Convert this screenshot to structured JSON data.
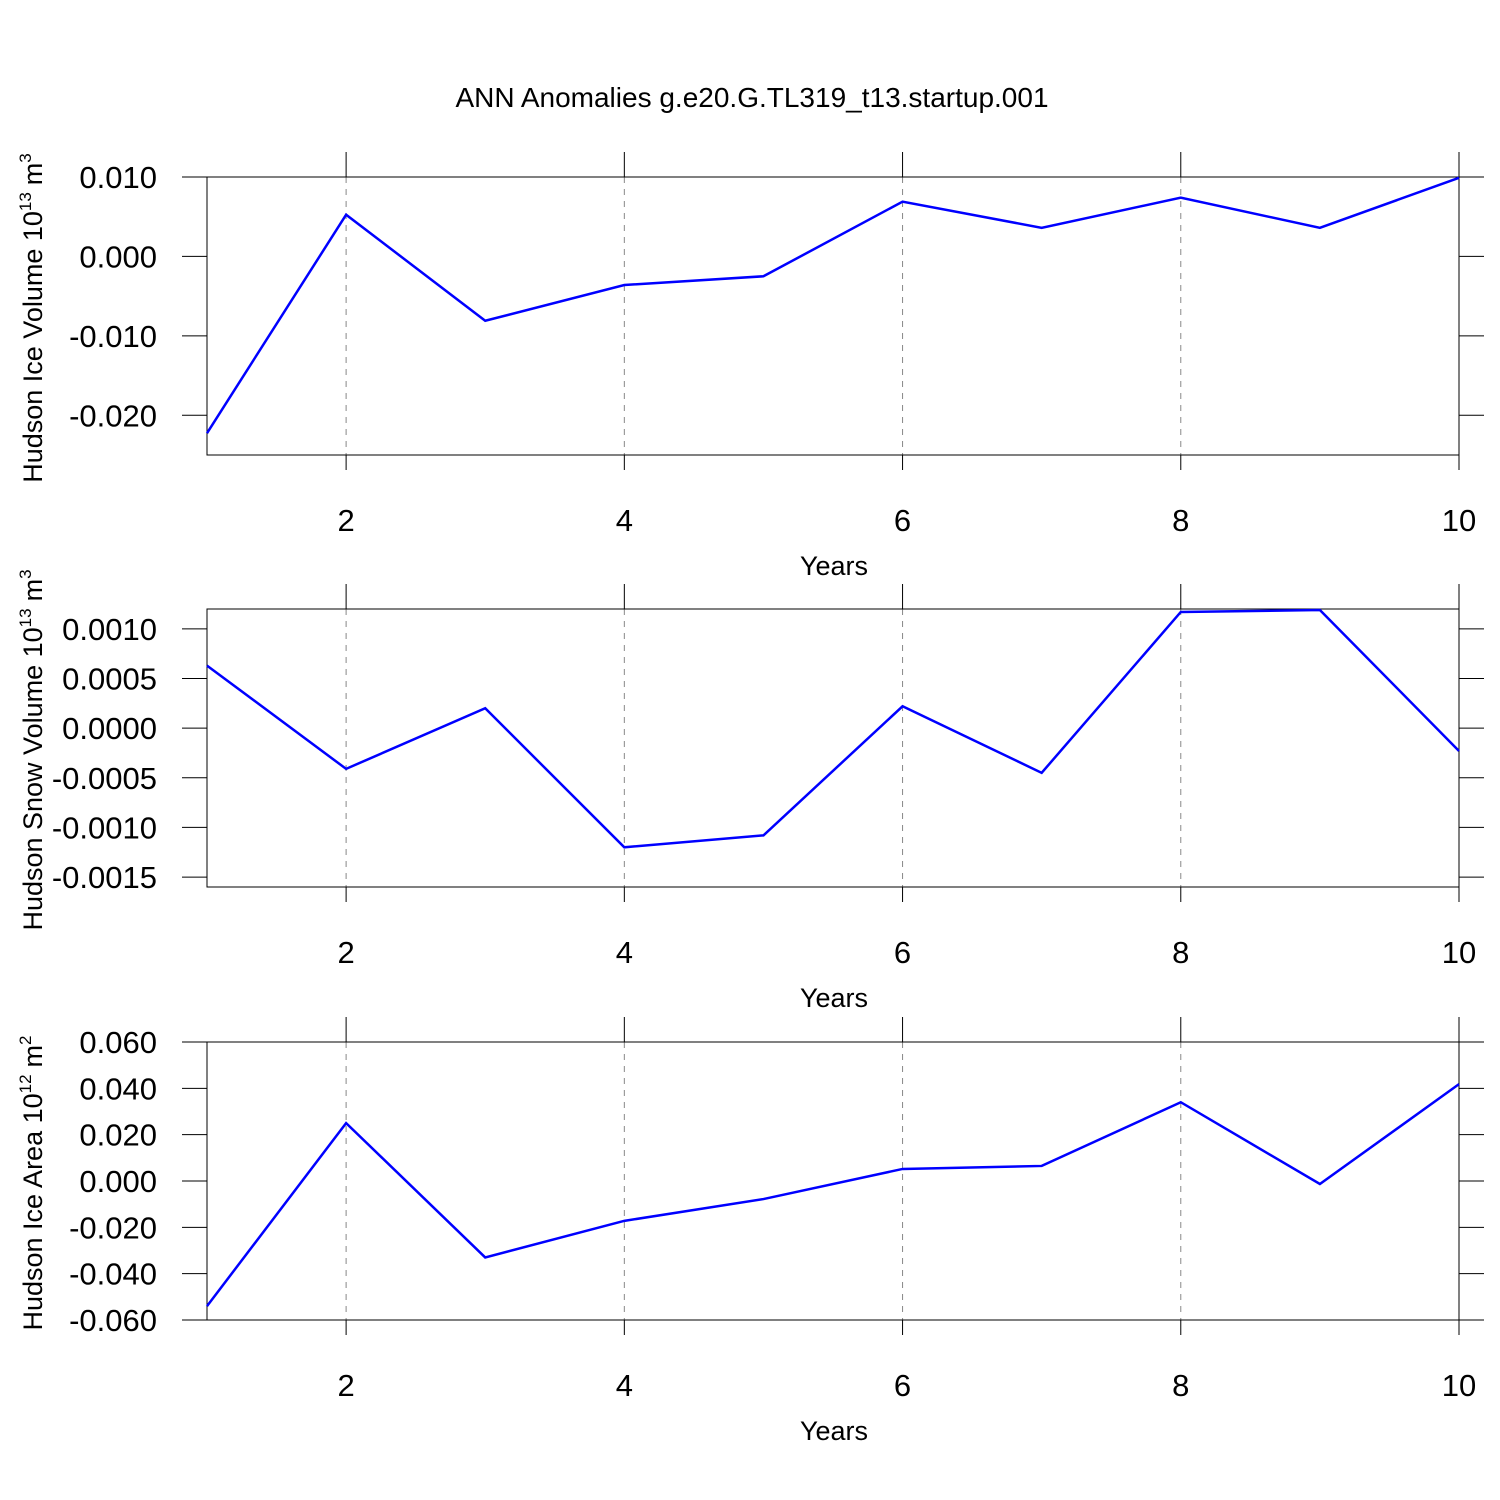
{
  "title": "ANN Anomalies g.e20.G.TL319_t13.startup.001",
  "chart_data": [
    {
      "type": "line",
      "ylabel": [
        "Hudson Ice Volume 10",
        "13",
        "m",
        "3"
      ],
      "xlabel": "Years",
      "x": [
        1,
        2,
        3,
        4,
        5,
        6,
        7,
        8,
        9,
        10
      ],
      "values": [
        -0.02225,
        0.00525,
        -0.0081,
        -0.0036,
        -0.0025,
        0.0069,
        0.0036,
        0.0074,
        0.0036,
        0.0099
      ],
      "color": "#0000ff",
      "xlim": [
        1,
        10
      ],
      "xticks": [
        2,
        4,
        6,
        8,
        10
      ],
      "ylim": [
        -0.025,
        0.01
      ],
      "yticks": [
        {
          "value": -0.02,
          "label": "-0.020"
        },
        {
          "value": -0.01,
          "label": "-0.010"
        },
        {
          "value": 0,
          "label": "0.000"
        },
        {
          "value": 0.01,
          "label": "0.010"
        }
      ],
      "xgrid": true
    },
    {
      "type": "line",
      "ylabel": [
        "Hudson Snow Volume 10",
        "13",
        "m",
        "3"
      ],
      "xlabel": "Years",
      "x": [
        1,
        2,
        3,
        4,
        5,
        6,
        7,
        8,
        9,
        10
      ],
      "values": [
        0.00063,
        -0.00041,
        0.0002,
        -0.0012,
        -0.00108,
        0.00022,
        -0.00045,
        0.00117,
        0.00119,
        -0.00023
      ],
      "color": "#0000ff",
      "xlim": [
        1,
        10
      ],
      "xticks": [
        2,
        4,
        6,
        8,
        10
      ],
      "ylim": [
        -0.0016,
        0.0012
      ],
      "yticks": [
        {
          "value": -0.0015,
          "label": "-0.0015"
        },
        {
          "value": -0.001,
          "label": "-0.0010"
        },
        {
          "value": -0.0005,
          "label": "-0.0005"
        },
        {
          "value": 0,
          "label": "0.0000"
        },
        {
          "value": 0.0005,
          "label": "0.0005"
        },
        {
          "value": 0.001,
          "label": "0.0010"
        }
      ],
      "xgrid": true
    },
    {
      "type": "line",
      "ylabel": [
        "Hudson Ice Area 10",
        "12",
        "m",
        "2"
      ],
      "xlabel": "Years",
      "x": [
        1,
        2,
        3,
        4,
        5,
        6,
        7,
        8,
        9,
        10
      ],
      "values": [
        -0.054,
        0.025,
        -0.033,
        -0.0172,
        -0.0078,
        0.0052,
        0.0065,
        0.034,
        -0.0013,
        0.0418
      ],
      "color": "#0000ff",
      "xlim": [
        1,
        10
      ],
      "xticks": [
        2,
        4,
        6,
        8,
        10
      ],
      "ylim": [
        -0.06,
        0.06
      ],
      "yticks": [
        {
          "value": -0.06,
          "label": "-0.060"
        },
        {
          "value": -0.04,
          "label": "-0.040"
        },
        {
          "value": -0.02,
          "label": "-0.020"
        },
        {
          "value": 0,
          "label": "0.000"
        },
        {
          "value": 0.02,
          "label": "0.020"
        },
        {
          "value": 0.04,
          "label": "0.040"
        },
        {
          "value": 0.06,
          "label": "0.060"
        }
      ],
      "xgrid": true
    }
  ]
}
